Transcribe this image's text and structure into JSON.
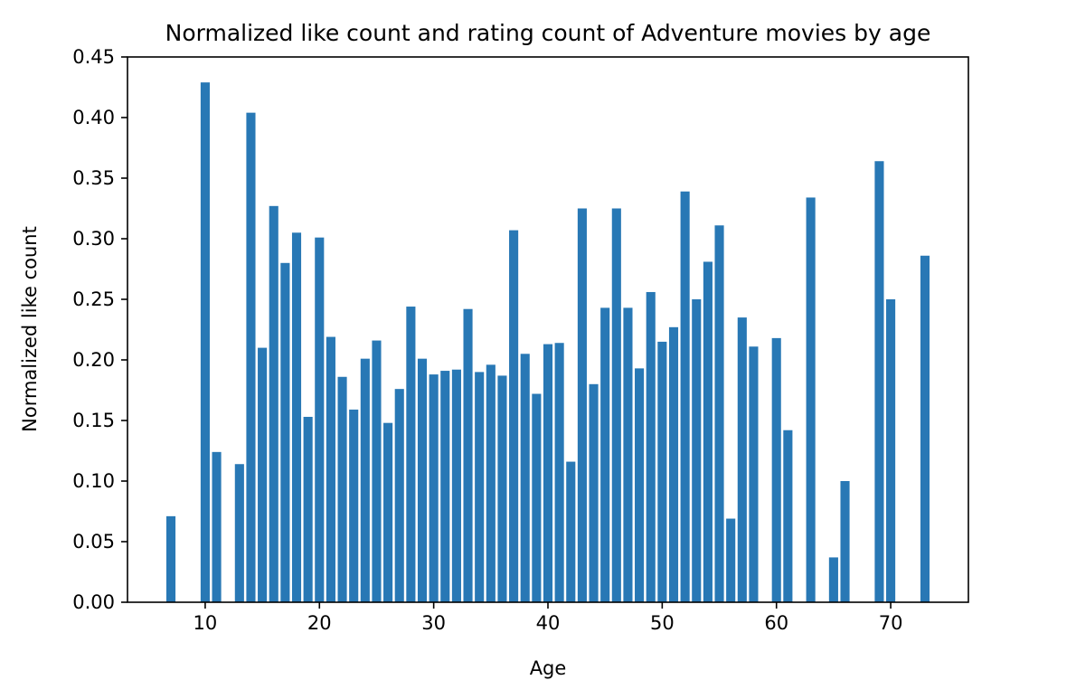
{
  "chart_data": {
    "type": "bar",
    "title": "Normalized like count and rating count of Adventure movies by age",
    "xlabel": "Age",
    "ylabel": "Normalized like count",
    "xlim": [
      3.2,
      76.8
    ],
    "ylim": [
      0,
      0.45
    ],
    "xticks": [
      10,
      20,
      30,
      40,
      50,
      60,
      70
    ],
    "xtick_labels": [
      "10",
      "20",
      "30",
      "40",
      "50",
      "60",
      "70"
    ],
    "yticks": [
      0,
      0.05,
      0.1,
      0.15,
      0.2,
      0.25,
      0.3,
      0.35,
      0.4,
      0.45
    ],
    "ytick_labels": [
      "0.00",
      "0.05",
      "0.10",
      "0.15",
      "0.20",
      "0.25",
      "0.30",
      "0.35",
      "0.40",
      "0.45"
    ],
    "grid": false,
    "bar_width": 0.8,
    "color": "#2878b5",
    "x": [
      7,
      10,
      11,
      13,
      14,
      15,
      16,
      17,
      18,
      19,
      20,
      21,
      22,
      23,
      24,
      25,
      26,
      27,
      28,
      29,
      30,
      31,
      32,
      33,
      34,
      35,
      36,
      37,
      38,
      39,
      40,
      41,
      42,
      43,
      44,
      45,
      46,
      47,
      48,
      49,
      50,
      51,
      52,
      53,
      54,
      55,
      56,
      57,
      58,
      60,
      61,
      63,
      65,
      66,
      69,
      70,
      73
    ],
    "values": [
      0.071,
      0.429,
      0.124,
      0.114,
      0.404,
      0.21,
      0.327,
      0.28,
      0.305,
      0.153,
      0.301,
      0.219,
      0.186,
      0.159,
      0.201,
      0.216,
      0.148,
      0.176,
      0.244,
      0.201,
      0.188,
      0.191,
      0.192,
      0.242,
      0.19,
      0.196,
      0.187,
      0.307,
      0.205,
      0.172,
      0.213,
      0.214,
      0.116,
      0.325,
      0.18,
      0.243,
      0.325,
      0.243,
      0.193,
      0.256,
      0.215,
      0.227,
      0.339,
      0.25,
      0.281,
      0.311,
      0.069,
      0.235,
      0.211,
      0.218,
      0.142,
      0.334,
      0.037,
      0.1,
      0.364,
      0.25,
      0.286
    ]
  }
}
